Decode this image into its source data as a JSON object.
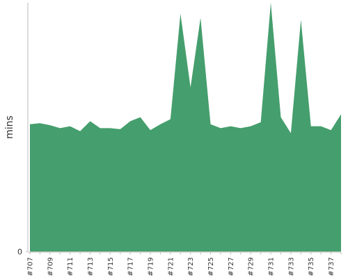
{
  "chart_data": {
    "type": "area",
    "ylabel": "mins",
    "categories": [
      "#707",
      null,
      "#709",
      null,
      "#711",
      null,
      "#713",
      null,
      "#715",
      null,
      "#717",
      null,
      "#719",
      null,
      "#721",
      null,
      "#723",
      null,
      "#725",
      null,
      "#727",
      null,
      "#729",
      null,
      "#731",
      null,
      "#733",
      null,
      "#735",
      null,
      "#737",
      null
    ],
    "values": [
      12.8,
      12.9,
      12.7,
      12.4,
      12.6,
      12.1,
      13.1,
      12.4,
      12.4,
      12.3,
      13.1,
      13.5,
      12.2,
      12.8,
      13.3,
      23.9,
      16.5,
      23.5,
      12.8,
      12.4,
      12.6,
      12.4,
      12.6,
      13.0,
      25.0,
      13.5,
      11.9,
      23.3,
      12.6,
      12.6,
      12.2,
      13.8
    ],
    "color": "#459e6d",
    "ylim": [
      0,
      25
    ],
    "yticks": [
      0
    ],
    "grid": false
  }
}
